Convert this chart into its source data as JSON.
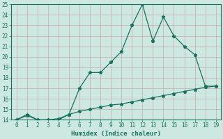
{
  "xlabel": "Humidex (Indice chaleur)",
  "bg_color": "#cce8e0",
  "grid_color": "#c8a8a8",
  "line_color": "#1a7060",
  "x_upper": [
    0,
    1,
    2,
    3,
    4,
    5,
    6,
    7,
    8,
    9,
    10,
    11,
    12,
    13,
    14,
    15,
    16,
    17,
    18,
    19
  ],
  "y_upper": [
    14.0,
    14.5,
    14.0,
    13.8,
    14.0,
    14.5,
    17.0,
    18.5,
    18.5,
    19.5,
    20.5,
    23.0,
    25.0,
    21.5,
    23.8,
    22.0,
    21.0,
    20.2,
    17.2,
    17.2
  ],
  "x_lower": [
    0,
    1,
    2,
    3,
    4,
    5,
    6,
    7,
    8,
    9,
    10,
    11,
    12,
    13,
    14,
    15,
    16,
    17,
    18,
    19
  ],
  "y_lower": [
    14.0,
    14.4,
    14.0,
    14.0,
    14.1,
    14.5,
    14.8,
    15.0,
    15.2,
    15.4,
    15.5,
    15.7,
    15.9,
    16.1,
    16.3,
    16.5,
    16.7,
    16.9,
    17.1,
    17.2
  ],
  "xlim": [
    -0.5,
    19.5
  ],
  "ylim": [
    14,
    25
  ],
  "yticks": [
    14,
    15,
    16,
    17,
    18,
    19,
    20,
    21,
    22,
    23,
    24,
    25
  ],
  "xticks": [
    0,
    1,
    2,
    3,
    4,
    5,
    6,
    7,
    8,
    9,
    10,
    11,
    12,
    13,
    14,
    15,
    16,
    17,
    18,
    19
  ],
  "marker": "*",
  "marker_size": 3.5,
  "line_width": 0.9,
  "font_size_label": 6.5,
  "font_size_tick": 5.5
}
